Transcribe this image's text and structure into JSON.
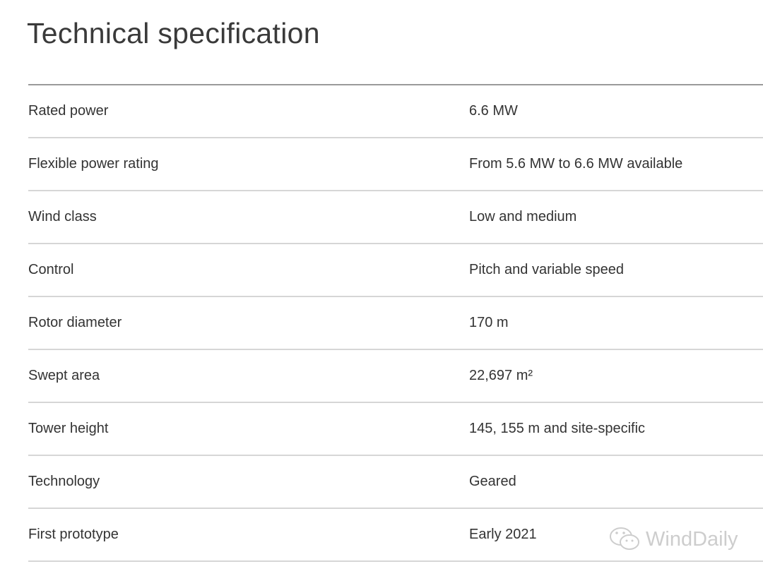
{
  "title": "Technical specification",
  "rows": [
    {
      "label": "Rated power",
      "value": "6.6 MW"
    },
    {
      "label": "Flexible power rating",
      "value": "From 5.6 MW to 6.6 MW available"
    },
    {
      "label": "Wind class",
      "value": "Low and medium"
    },
    {
      "label": "Control",
      "value": "Pitch and variable speed"
    },
    {
      "label": "Rotor diameter",
      "value": "170 m"
    },
    {
      "label": "Swept area",
      "value": "22,697 m²"
    },
    {
      "label": "Tower height",
      "value": "145, 155 m and site-specific"
    },
    {
      "label": "Technology",
      "value": "Geared"
    },
    {
      "label": "First prototype",
      "value": "Early 2021"
    }
  ],
  "watermark": {
    "text": "WindDaily",
    "icon": "wechat-icon"
  }
}
